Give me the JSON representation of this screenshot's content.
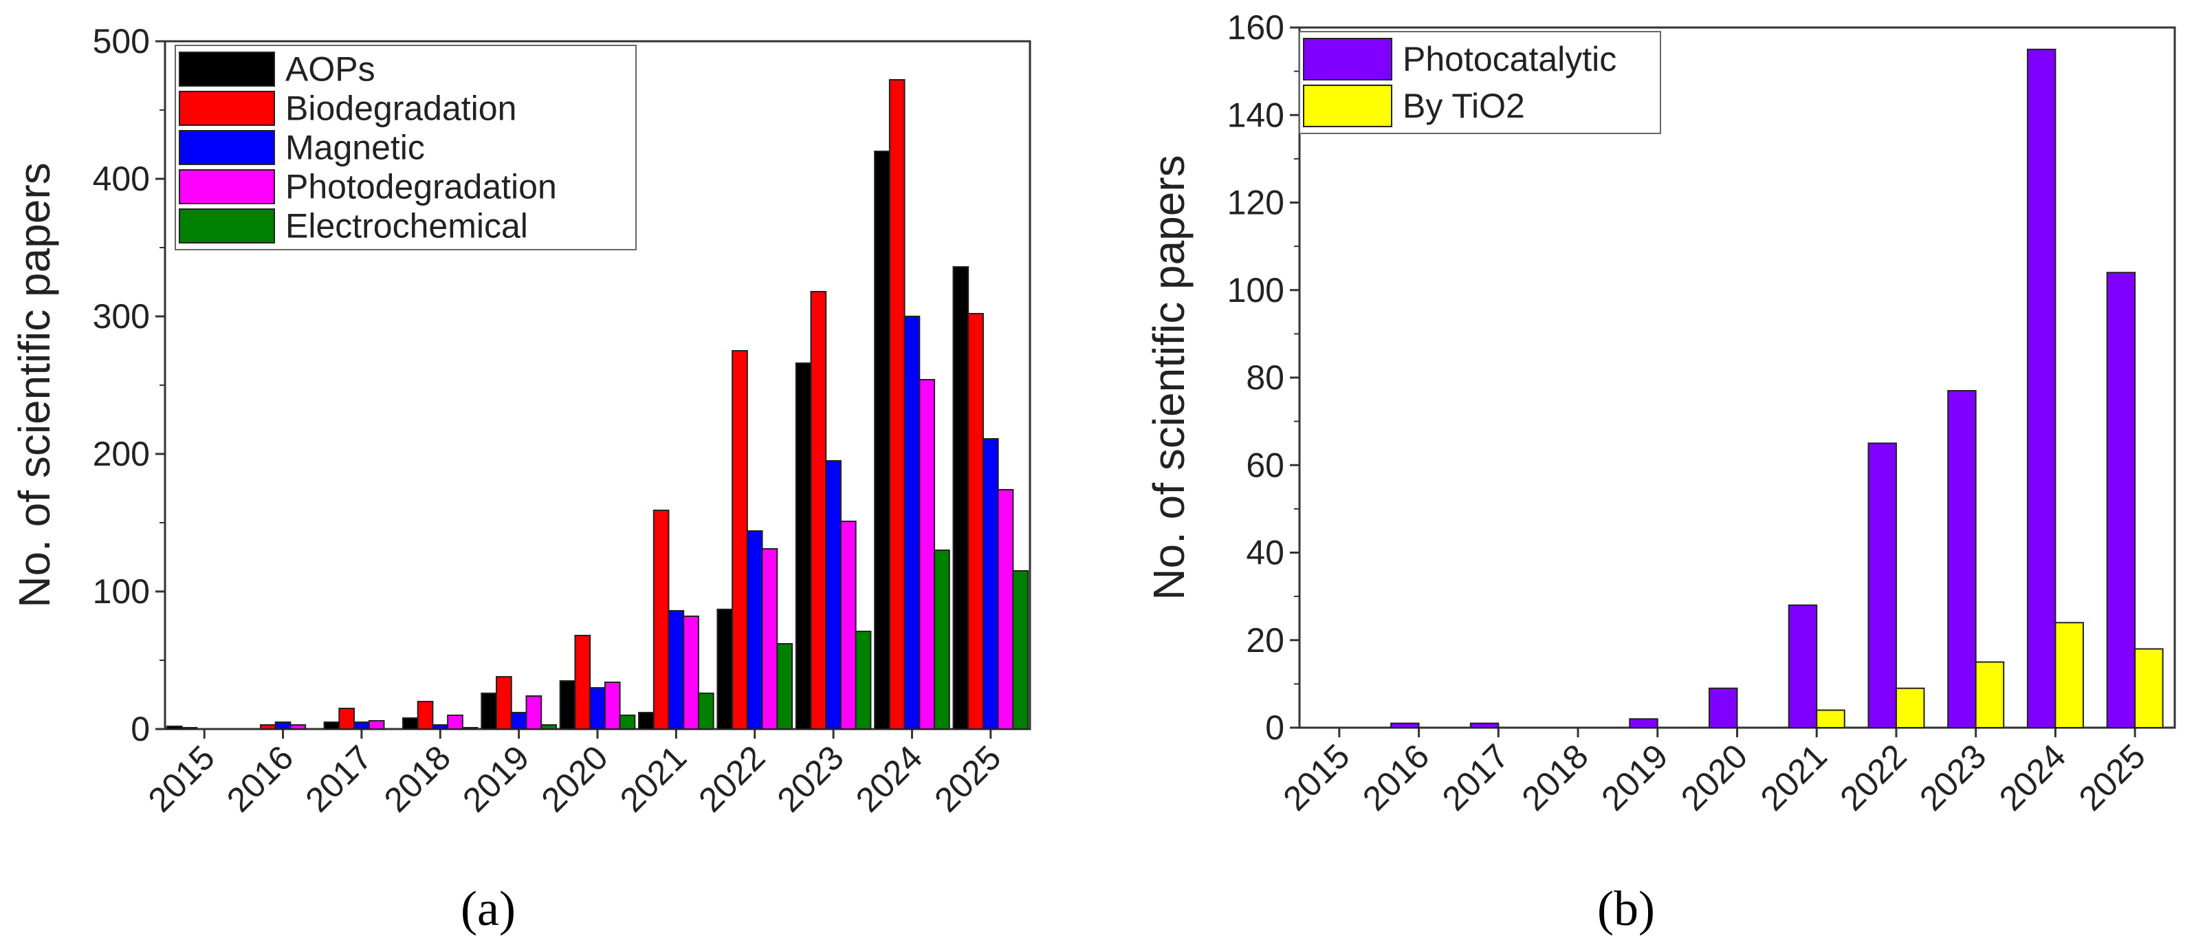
{
  "chart_data": [
    {
      "type": "bar",
      "panel": "a",
      "ylabel": "No. of scientific papers",
      "xlabel": "",
      "ylim": [
        0,
        500
      ],
      "yticks": [
        0,
        100,
        200,
        300,
        400,
        500
      ],
      "categories": [
        "2015",
        "2016",
        "2017",
        "2018",
        "2019",
        "2020",
        "2021",
        "2022",
        "2023",
        "2024",
        "2025"
      ],
      "legend_position": "top-left",
      "series": [
        {
          "name": "AOPs",
          "color": "#000000",
          "values": [
            2,
            0,
            5,
            8,
            26,
            35,
            12,
            87,
            266,
            420,
            336
          ]
        },
        {
          "name": "Biodegradation",
          "color": "#ff0000",
          "values": [
            1,
            3,
            15,
            20,
            38,
            68,
            159,
            275,
            318,
            472,
            302
          ]
        },
        {
          "name": "Magnetic",
          "color": "#0000ff",
          "values": [
            0,
            5,
            5,
            3,
            12,
            30,
            86,
            144,
            195,
            300,
            211
          ]
        },
        {
          "name": "Photodegradation",
          "color": "#ff00ff",
          "values": [
            0,
            3,
            6,
            10,
            24,
            34,
            82,
            131,
            151,
            254,
            174
          ]
        },
        {
          "name": "Electrochemical",
          "color": "#008000",
          "values": [
            0,
            0,
            0,
            1,
            3,
            10,
            26,
            62,
            71,
            130,
            115
          ]
        }
      ]
    },
    {
      "type": "bar",
      "panel": "b",
      "ylabel": "No. of scientific papers",
      "xlabel": "",
      "ylim": [
        0,
        160
      ],
      "yticks": [
        0,
        20,
        40,
        60,
        80,
        100,
        120,
        140,
        160
      ],
      "categories": [
        "2015",
        "2016",
        "2017",
        "2018",
        "2019",
        "2020",
        "2021",
        "2022",
        "2023",
        "2024",
        "2025"
      ],
      "legend_position": "top-left",
      "series": [
        {
          "name": "Photocatalytic",
          "color": "#8000ff",
          "values": [
            0,
            1,
            1,
            0,
            2,
            9,
            28,
            65,
            77,
            155,
            104
          ]
        },
        {
          "name": "By TiO2",
          "color": "#ffff00",
          "values": [
            0,
            0,
            0,
            0,
            0,
            0,
            4,
            9,
            15,
            24,
            18
          ]
        }
      ]
    }
  ],
  "captions": [
    "(a)",
    "(b)"
  ]
}
